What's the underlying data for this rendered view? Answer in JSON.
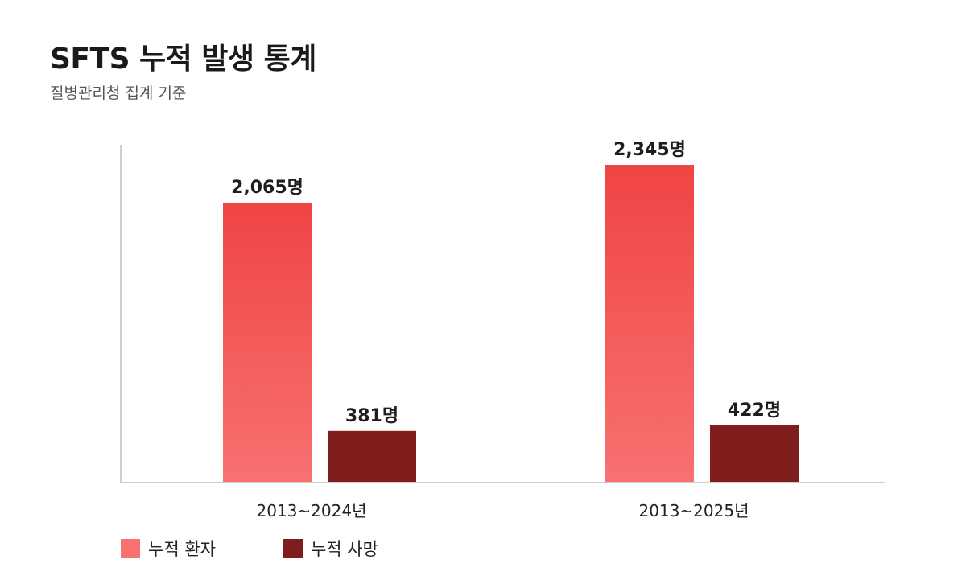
{
  "title": "SFTS 누적 발생 통계",
  "subtitle": "질병관리청 집계 기준",
  "chart_data": {
    "type": "bar",
    "categories": [
      "2013~2024년",
      "2013~2025년"
    ],
    "series": [
      {
        "name": "누적 환자",
        "values": [
          2065,
          2345
        ],
        "labels": [
          "2,065명",
          "2,345명"
        ],
        "color_top": "#ef4444",
        "color_bottom": "#f87171"
      },
      {
        "name": "누적 사망",
        "values": [
          381,
          422
        ],
        "labels": [
          "381명",
          "422명"
        ],
        "color_top": "#7f1d1d",
        "color_bottom": "#7f1d1d"
      }
    ],
    "ylim": [
      0,
      2600
    ],
    "grid": false,
    "legend_position": "bottom-left"
  }
}
